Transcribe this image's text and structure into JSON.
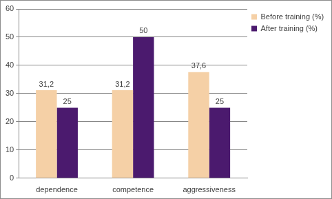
{
  "chart_data": {
    "type": "bar",
    "categories": [
      "dependence",
      "competence",
      "aggressiveness"
    ],
    "series": [
      {
        "name": "Before training (%)",
        "color": "#f5d0a6",
        "values": [
          31.2,
          31.2,
          37.6
        ],
        "value_labels": [
          "31,2",
          "31,2",
          "37,6"
        ]
      },
      {
        "name": "After training (%)",
        "color": "#4b1a6e",
        "values": [
          25,
          50,
          25
        ]
      }
    ],
    "ylim": [
      0,
      60
    ],
    "yticks": [
      0,
      10,
      20,
      30,
      40,
      50,
      60
    ],
    "grid": true,
    "legend": "right",
    "data_labels": true
  }
}
